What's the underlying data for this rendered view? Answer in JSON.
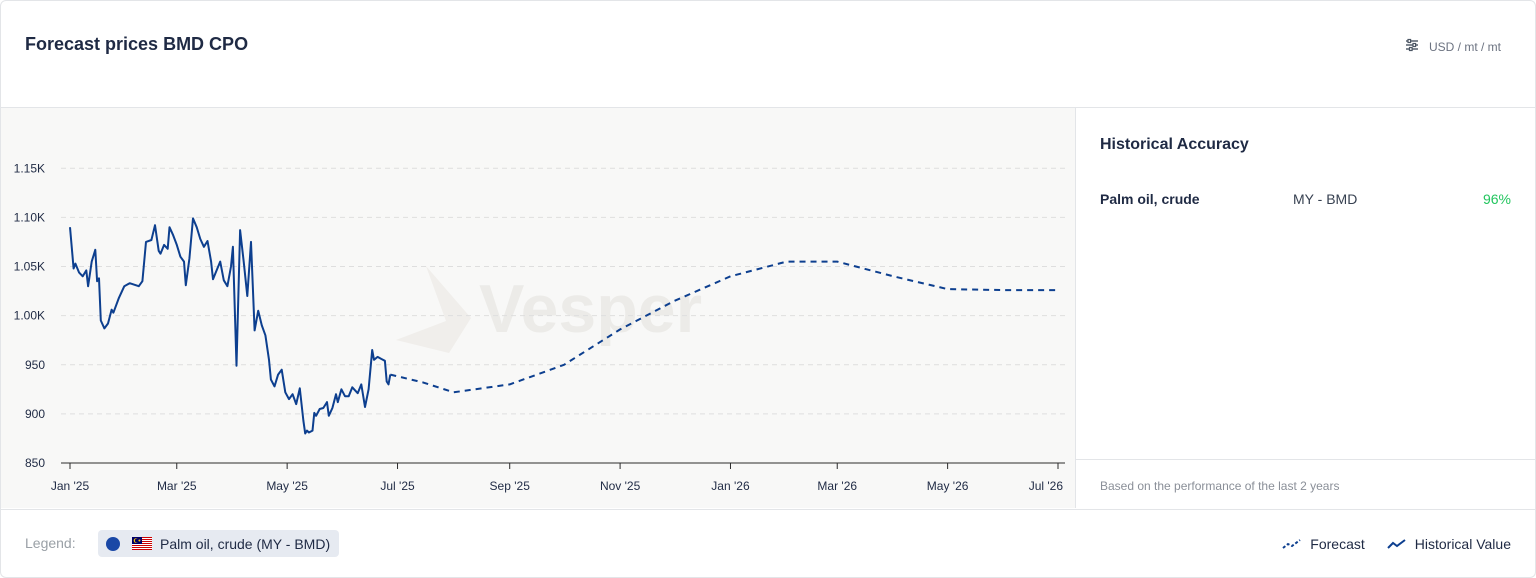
{
  "header": {
    "title": "Forecast prices BMD CPO",
    "unit_label": "USD / mt / mt"
  },
  "chart_data": {
    "type": "line",
    "title": "",
    "xlabel": "",
    "ylabel": "",
    "ylim": [
      850,
      1200
    ],
    "y_ticks": [
      {
        "value": 850,
        "label": "850"
      },
      {
        "value": 900,
        "label": "900"
      },
      {
        "value": 950,
        "label": "950"
      },
      {
        "value": 1000,
        "label": "1.00K"
      },
      {
        "value": 1050,
        "label": "1.05K"
      },
      {
        "value": 1100,
        "label": "1.10K"
      },
      {
        "value": 1150,
        "label": "1.15K"
      }
    ],
    "x_ticks": [
      {
        "date": "2025-01-01",
        "label": "Jan '25"
      },
      {
        "date": "2025-03-01",
        "label": "Mar '25"
      },
      {
        "date": "2025-05-01",
        "label": "May '25"
      },
      {
        "date": "2025-07-01",
        "label": "Jul '25"
      },
      {
        "date": "2025-09-01",
        "label": "Sep '25"
      },
      {
        "date": "2025-11-01",
        "label": "Nov '25"
      },
      {
        "date": "2026-01-01",
        "label": "Jan '26"
      },
      {
        "date": "2026-03-01",
        "label": "Mar '26"
      },
      {
        "date": "2026-05-01",
        "label": "May '26"
      },
      {
        "date": "2026-07-01",
        "label": "Jul '26"
      }
    ],
    "grid": true,
    "watermark": "Vesper",
    "series": [
      {
        "name": "Historical Value",
        "style": "solid",
        "color": "#0d3f8f",
        "points": [
          [
            "2025-01-01",
            1090
          ],
          [
            "2025-01-03",
            1048
          ],
          [
            "2025-01-04",
            1053
          ],
          [
            "2025-01-06",
            1044
          ],
          [
            "2025-01-08",
            1040
          ],
          [
            "2025-01-10",
            1046
          ],
          [
            "2025-01-11",
            1030
          ],
          [
            "2025-01-13",
            1055
          ],
          [
            "2025-01-15",
            1067
          ],
          [
            "2025-01-16",
            1035
          ],
          [
            "2025-01-17",
            1038
          ],
          [
            "2025-01-18",
            995
          ],
          [
            "2025-01-20",
            987
          ],
          [
            "2025-01-22",
            992
          ],
          [
            "2025-01-24",
            1006
          ],
          [
            "2025-01-25",
            1003
          ],
          [
            "2025-01-28",
            1018
          ],
          [
            "2025-01-31",
            1030
          ],
          [
            "2025-02-03",
            1033
          ],
          [
            "2025-02-08",
            1030
          ],
          [
            "2025-02-10",
            1035
          ],
          [
            "2025-02-12",
            1075
          ],
          [
            "2025-02-15",
            1077
          ],
          [
            "2025-02-17",
            1092
          ],
          [
            "2025-02-19",
            1066
          ],
          [
            "2025-02-20",
            1063
          ],
          [
            "2025-02-22",
            1072
          ],
          [
            "2025-02-24",
            1068
          ],
          [
            "2025-02-25",
            1090
          ],
          [
            "2025-02-27",
            1082
          ],
          [
            "2025-03-01",
            1072
          ],
          [
            "2025-03-03",
            1060
          ],
          [
            "2025-03-05",
            1055
          ],
          [
            "2025-03-06",
            1031
          ],
          [
            "2025-03-08",
            1058
          ],
          [
            "2025-03-10",
            1099
          ],
          [
            "2025-03-12",
            1090
          ],
          [
            "2025-03-14",
            1078
          ],
          [
            "2025-03-16",
            1070
          ],
          [
            "2025-03-18",
            1076
          ],
          [
            "2025-03-20",
            1055
          ],
          [
            "2025-03-21",
            1037
          ],
          [
            "2025-03-23",
            1046
          ],
          [
            "2025-03-25",
            1055
          ],
          [
            "2025-03-27",
            1036
          ],
          [
            "2025-03-29",
            1030
          ],
          [
            "2025-03-31",
            1050
          ],
          [
            "2025-04-01",
            1070
          ],
          [
            "2025-04-03",
            949
          ],
          [
            "2025-04-05",
            1087
          ],
          [
            "2025-04-07",
            1055
          ],
          [
            "2025-04-09",
            1020
          ],
          [
            "2025-04-11",
            1075
          ],
          [
            "2025-04-13",
            985
          ],
          [
            "2025-04-15",
            1005
          ],
          [
            "2025-04-17",
            990
          ],
          [
            "2025-04-19",
            980
          ],
          [
            "2025-04-21",
            955
          ],
          [
            "2025-04-22",
            935
          ],
          [
            "2025-04-24",
            928
          ],
          [
            "2025-04-26",
            940
          ],
          [
            "2025-04-28",
            945
          ],
          [
            "2025-04-30",
            922
          ],
          [
            "2025-05-02",
            915
          ],
          [
            "2025-05-04",
            920
          ],
          [
            "2025-05-06",
            910
          ],
          [
            "2025-05-08",
            926
          ],
          [
            "2025-05-10",
            893
          ],
          [
            "2025-05-11",
            880
          ],
          [
            "2025-05-12",
            883
          ],
          [
            "2025-05-13",
            881
          ],
          [
            "2025-05-15",
            883
          ],
          [
            "2025-05-16",
            901
          ],
          [
            "2025-05-17",
            898
          ],
          [
            "2025-05-19",
            905
          ],
          [
            "2025-05-21",
            906
          ],
          [
            "2025-05-23",
            912
          ],
          [
            "2025-05-24",
            898
          ],
          [
            "2025-05-26",
            906
          ],
          [
            "2025-05-28",
            920
          ],
          [
            "2025-05-29",
            912
          ],
          [
            "2025-05-31",
            925
          ],
          [
            "2025-06-02",
            918
          ],
          [
            "2025-06-04",
            918
          ],
          [
            "2025-06-06",
            927
          ],
          [
            "2025-06-07",
            925
          ],
          [
            "2025-06-09",
            921
          ],
          [
            "2025-06-11",
            930
          ],
          [
            "2025-06-13",
            907
          ],
          [
            "2025-06-15",
            925
          ],
          [
            "2025-06-17",
            965
          ],
          [
            "2025-06-18",
            955
          ],
          [
            "2025-06-20",
            958
          ],
          [
            "2025-06-22",
            956
          ],
          [
            "2025-06-24",
            954
          ],
          [
            "2025-06-25",
            933
          ],
          [
            "2025-06-26",
            930
          ],
          [
            "2025-06-27",
            940
          ]
        ]
      },
      {
        "name": "Forecast",
        "style": "dashed",
        "color": "#0d3f8f",
        "points": [
          [
            "2025-06-27",
            940
          ],
          [
            "2025-07-15",
            932
          ],
          [
            "2025-08-01",
            922
          ],
          [
            "2025-09-01",
            930
          ],
          [
            "2025-10-01",
            950
          ],
          [
            "2025-11-01",
            986
          ],
          [
            "2025-12-01",
            1015
          ],
          [
            "2026-01-01",
            1040
          ],
          [
            "2026-02-01",
            1055
          ],
          [
            "2026-03-01",
            1055
          ],
          [
            "2026-04-01",
            1040
          ],
          [
            "2026-05-01",
            1027
          ],
          [
            "2026-06-01",
            1026
          ],
          [
            "2026-07-01",
            1026
          ]
        ]
      }
    ]
  },
  "accuracy": {
    "title": "Historical Accuracy",
    "rows": [
      {
        "name": "Palm oil, crude",
        "market": "MY - BMD",
        "value": "96%"
      }
    ],
    "footnote": "Based on the performance of the last 2 years"
  },
  "legend": {
    "label": "Legend:",
    "chip_label": "Palm oil, crude (MY - BMD)",
    "forecast_label": "Forecast",
    "historical_label": "Historical Value"
  },
  "colors": {
    "line": "#0d3f8f",
    "accent_green": "#22c55e",
    "chip_bg": "#e6eaf1"
  }
}
